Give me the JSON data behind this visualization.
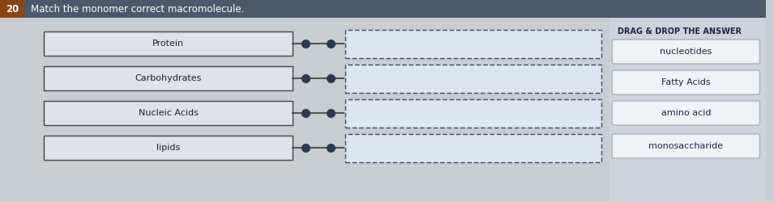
{
  "title_number": "20",
  "title_text": "Match the monomer correct macromolecule.",
  "bg_color": "#c8cdd2",
  "title_bg": "#4a5a6a",
  "title_num_bg": "#8B4513",
  "left_labels": [
    "Protein",
    "Carbohydrates",
    "Nucleic Acids",
    "lipids"
  ],
  "right_labels": [
    "nucleotides",
    "Fatty Acids",
    "amino acid",
    "monosaccharide"
  ],
  "drag_drop_text": "DRAG & DROP THE ANSWER",
  "left_box_facecolor": "#dde3e8",
  "left_box_edgecolor": "#444444",
  "right_panel_color": "#cdd4dc",
  "answer_box_facecolor": "#f0f3f6",
  "answer_box_edgecolor": "#aab0b8",
  "dashed_box_facecolor": "#dde5ee",
  "dashed_box_edgecolor": "#3a4a6a",
  "connector_color": "#2a3a4a",
  "connector_line_color": "#555555"
}
